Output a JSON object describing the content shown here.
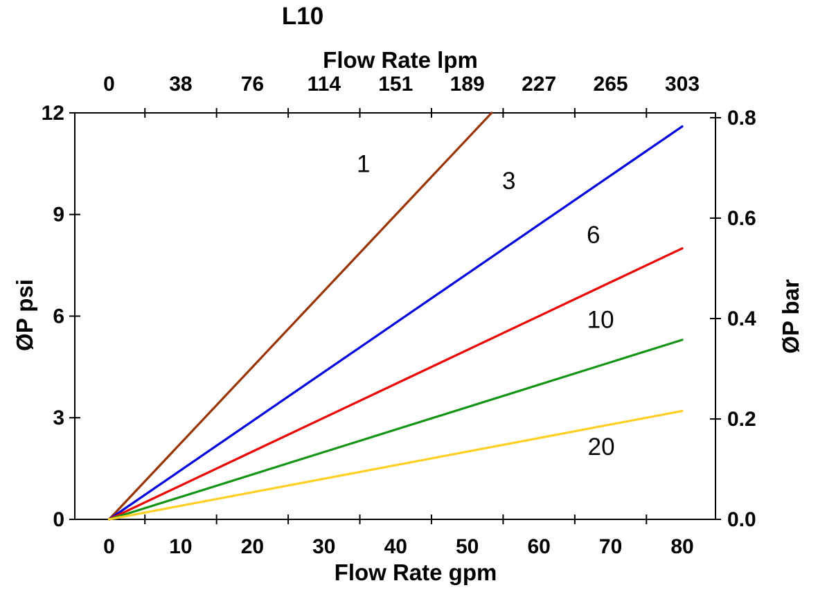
{
  "chart_data": {
    "type": "line",
    "title": "L10",
    "grid": false,
    "legend": "none (inline curve labels)",
    "axes": {
      "bottom": {
        "label": "Flow Rate gpm",
        "tick_labels": [
          "0",
          "10",
          "20",
          "30",
          "40",
          "50",
          "60",
          "70",
          "80"
        ],
        "tick_values": [
          0,
          10,
          20,
          30,
          40,
          50,
          60,
          70,
          80
        ],
        "range_gpm": [
          0,
          80
        ]
      },
      "top": {
        "label": "Flow Rate lpm",
        "tick_labels": [
          "0",
          "38",
          "76",
          "114",
          "151",
          "189",
          "227",
          "265",
          "303"
        ],
        "tick_values": [
          0,
          38,
          76,
          114,
          151,
          189,
          227,
          265,
          303
        ]
      },
      "left": {
        "label": "ØP psi",
        "tick_labels": [
          "0",
          "3",
          "6",
          "9",
          "12"
        ],
        "tick_values": [
          0,
          3,
          6,
          9,
          12
        ],
        "range_psi": [
          0,
          12
        ]
      },
      "right": {
        "label": "ØP bar",
        "tick_labels": [
          "0.0",
          "0.2",
          "0.4",
          "0.6",
          "0.8"
        ],
        "tick_values": [
          0.0,
          0.2,
          0.4,
          0.6,
          0.8
        ]
      }
    },
    "series": [
      {
        "name": "1",
        "color": "#993300",
        "points_gpm_psi": [
          [
            0,
            0
          ],
          [
            53.4,
            12.0
          ]
        ],
        "label_pos_gpm_psi": [
          35.5,
          10.5
        ]
      },
      {
        "name": "3",
        "color": "#0000E0",
        "points_gpm_psi": [
          [
            0,
            0
          ],
          [
            80,
            11.6
          ]
        ],
        "label_pos_gpm_psi": [
          55.8,
          10.0
        ]
      },
      {
        "name": "6",
        "color": "#EE0000",
        "points_gpm_psi": [
          [
            0,
            0
          ],
          [
            80,
            8.0
          ]
        ],
        "label_pos_gpm_psi": [
          67.6,
          8.4
        ]
      },
      {
        "name": "10",
        "color": "#149414",
        "points_gpm_psi": [
          [
            0,
            0
          ],
          [
            80,
            5.3
          ]
        ],
        "label_pos_gpm_psi": [
          68.6,
          5.9
        ]
      },
      {
        "name": "20",
        "color": "#FFD024",
        "points_gpm_psi": [
          [
            0,
            0
          ],
          [
            80,
            3.2
          ]
        ],
        "label_pos_gpm_psi": [
          68.7,
          2.15
        ]
      }
    ],
    "colors": {
      "axis": "#000000",
      "text": "#000000",
      "background": "#FFFFFF"
    }
  }
}
